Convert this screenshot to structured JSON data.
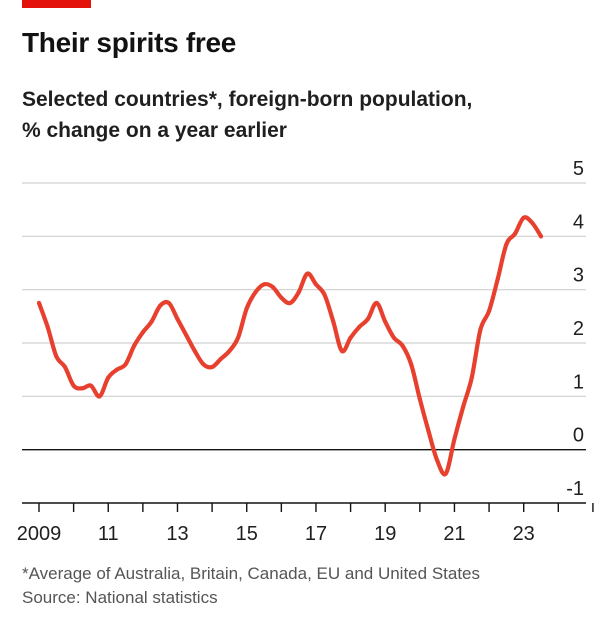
{
  "header": {
    "title": "Their spirits free",
    "subtitle_line1": "Selected countries*, foreign-born population,",
    "subtitle_line2": "% change on a year earlier"
  },
  "footer": {
    "footnote": "*Average of Australia, Britain, Canada, EU and United States",
    "source": "Source: National statistics"
  },
  "colors": {
    "accent": "#e3120b",
    "line": "#e8402e",
    "grid": "#d0d0d0",
    "zero_line": "#121212"
  },
  "chart_data": {
    "type": "line",
    "title": "Their spirits free",
    "subtitle": "Selected countries*, foreign-born population, % change on a year earlier",
    "xlabel": "",
    "ylabel": "",
    "ylim": [
      -1,
      5
    ],
    "xlim": [
      2008.75,
      2025.25
    ],
    "yticks": [
      5,
      4,
      3,
      2,
      1,
      0,
      -1
    ],
    "ytick_labels": [
      "5",
      "4",
      "3",
      "2",
      "1",
      "0",
      "-1"
    ],
    "xtick_labels": [
      {
        "x": 2009,
        "label": "2009"
      },
      {
        "x": 2011,
        "label": "11"
      },
      {
        "x": 2013,
        "label": "13"
      },
      {
        "x": 2015,
        "label": "15"
      },
      {
        "x": 2017,
        "label": "17"
      },
      {
        "x": 2019,
        "label": "19"
      },
      {
        "x": 2021,
        "label": "21"
      },
      {
        "x": 2023,
        "label": "23"
      }
    ],
    "xticks_minor": [
      2009,
      2010,
      2011,
      2012,
      2013,
      2014,
      2015,
      2016,
      2017,
      2018,
      2019,
      2020,
      2021,
      2022,
      2023,
      2024,
      2025
    ],
    "grid": true,
    "legend": "none",
    "series": [
      {
        "x": [
          2009.0,
          2009.25,
          2009.5,
          2009.75,
          2010.0,
          2010.25,
          2010.5,
          2010.75,
          2011.0,
          2011.25,
          2011.5,
          2011.75,
          2012.0,
          2012.25,
          2012.5,
          2012.75,
          2013.0,
          2013.25,
          2013.5,
          2013.75,
          2014.0,
          2014.25,
          2014.5,
          2014.75,
          2015.0,
          2015.25,
          2015.5,
          2015.75,
          2016.0,
          2016.25,
          2016.5,
          2016.75,
          2017.0,
          2017.25,
          2017.5,
          2017.75,
          2018.0,
          2018.25,
          2018.5,
          2018.75,
          2019.0,
          2019.25,
          2019.5,
          2019.75,
          2020.0,
          2020.25,
          2020.5,
          2020.75,
          2021.0,
          2021.25,
          2021.5,
          2021.75,
          2022.0,
          2022.25,
          2022.5,
          2022.75,
          2023.0,
          2023.25,
          2023.5
        ],
        "y": [
          2.75,
          2.3,
          1.75,
          1.55,
          1.2,
          1.15,
          1.2,
          1.0,
          1.35,
          1.5,
          1.6,
          1.95,
          2.2,
          2.4,
          2.7,
          2.75,
          2.45,
          2.15,
          1.85,
          1.6,
          1.55,
          1.7,
          1.85,
          2.1,
          2.65,
          2.95,
          3.1,
          3.05,
          2.85,
          2.75,
          2.95,
          3.3,
          3.1,
          2.9,
          2.4,
          1.85,
          2.1,
          2.3,
          2.45,
          2.75,
          2.4,
          2.1,
          1.95,
          1.6,
          0.95,
          0.35,
          -0.2,
          -0.45,
          0.2,
          0.8,
          1.35,
          2.25,
          2.6,
          3.2,
          3.85,
          4.05,
          4.35,
          4.25,
          4.0
        ]
      }
    ]
  }
}
